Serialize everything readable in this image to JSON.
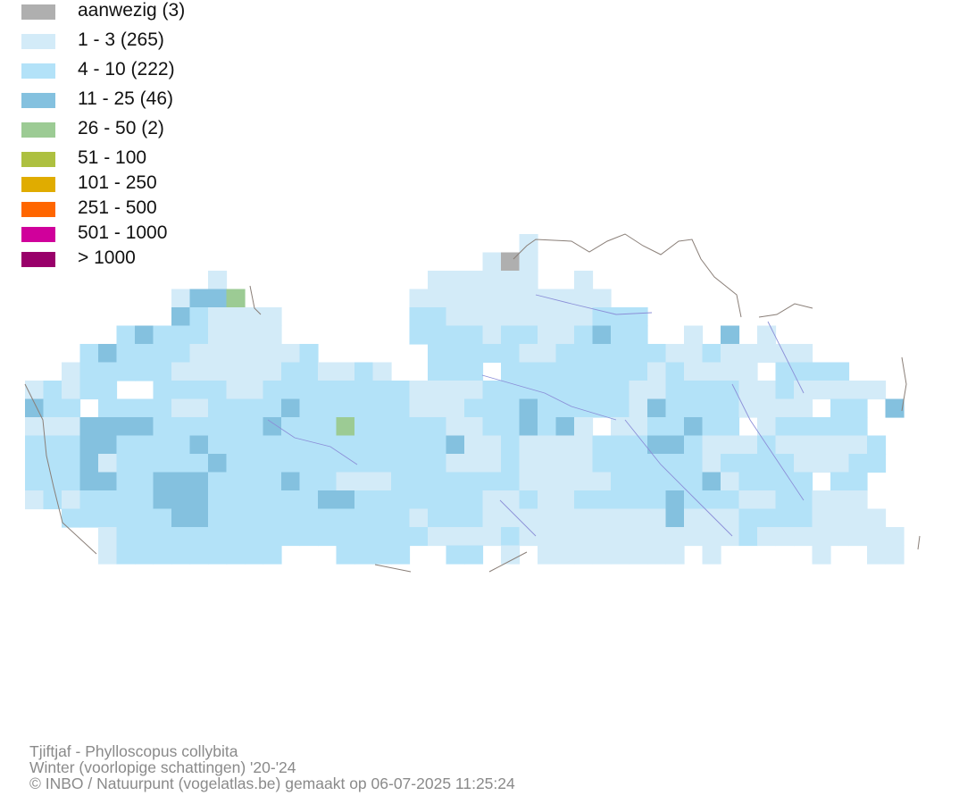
{
  "legend": {
    "items": [
      {
        "label": "aanwezig (3)",
        "color": "#afafaf"
      },
      {
        "label": "1 - 3 (265)",
        "color": "#d3ebf8"
      },
      {
        "label": "4 - 10 (222)",
        "color": "#b3e2f8"
      },
      {
        "label": "11 - 25 (46)",
        "color": "#84c1df"
      },
      {
        "label": "26 - 50 (2)",
        "color": "#9ccb94"
      },
      {
        "label": "51 - 100",
        "color": "#adc040"
      },
      {
        "label": "101 - 250",
        "color": "#e0ac00"
      },
      {
        "label": "251 - 500",
        "color": "#ff6600"
      },
      {
        "label": "501 - 1000",
        "color": "#d0009b"
      },
      {
        "label": "> 1000",
        "color": "#99006a"
      }
    ]
  },
  "map": {
    "border_color": "#8a7f78",
    "river_color": "#8b8fd8"
  },
  "footer": {
    "line1": "Tjiftjaf - Phylloscopus collybita",
    "line2": "Winter (voorlopige schattingen) '20-'24",
    "line3": "© INBO / Natuurpunt (vogelatlas.be) gemaakt op 06-07-2025 11:25:24"
  }
}
